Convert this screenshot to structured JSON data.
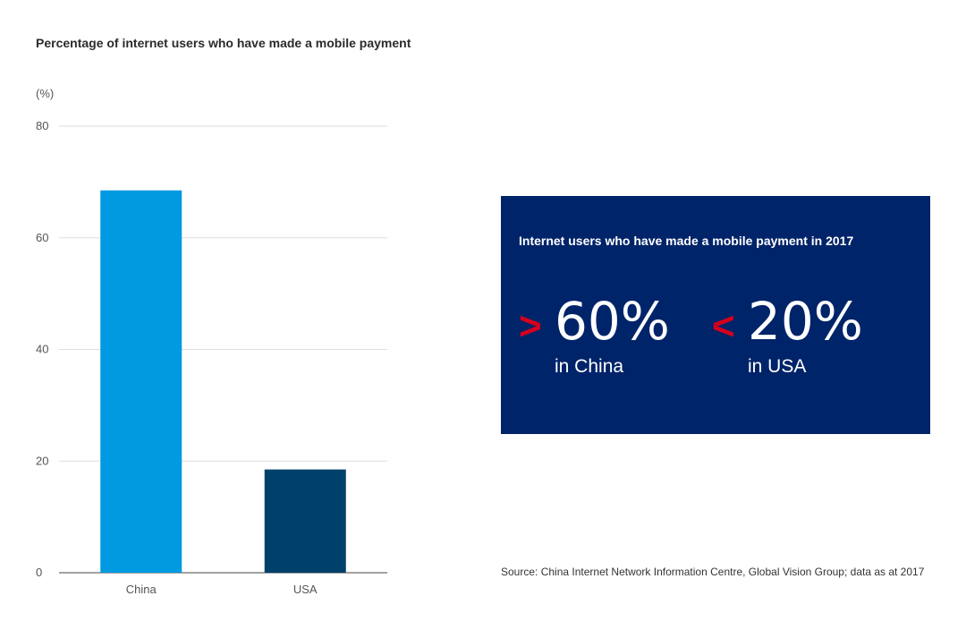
{
  "chart_data": {
    "type": "bar",
    "title": "Percentage of internet users who have made a mobile payment",
    "unit_label": "(%)",
    "categories": [
      "China",
      "USA"
    ],
    "values": [
      68.5,
      18.5
    ],
    "colors": [
      "#009ae0",
      "#00416b"
    ],
    "ylim": [
      0,
      80
    ],
    "yticks": [
      0,
      20,
      40,
      60,
      80
    ],
    "grid": true,
    "xlabel": "",
    "ylabel": ""
  },
  "panel": {
    "title": "Internet users who have made a mobile payment in 2017",
    "background": "#002469",
    "stats": [
      {
        "symbol": ">",
        "value": "60%",
        "label": "in China"
      },
      {
        "symbol": "<",
        "value": "20%",
        "label": "in USA"
      }
    ],
    "symbol_color": "#d6001c"
  },
  "source": "Source: China Internet Network Information Centre, Global Vision Group; data as at 2017"
}
